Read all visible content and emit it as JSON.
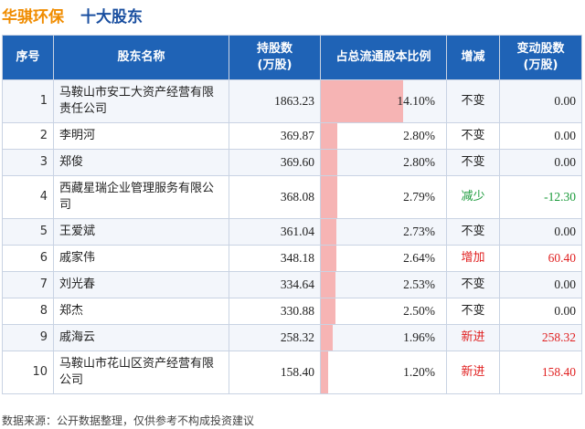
{
  "header": {
    "company": "华骐环保",
    "topic": "十大股东"
  },
  "columns": {
    "rank": "序号",
    "name": "股东名称",
    "shares": "持股数\n(万股)",
    "pct": "占总流通股本比例",
    "change": "增减",
    "delta": "变动股数\n(万股)"
  },
  "rows": [
    {
      "rank": "1",
      "name": "马鞍山市安工大资产经营有限责任公司",
      "shares": "1863.23",
      "pct": "14.10%",
      "pct_value": 14.1,
      "change": "不变",
      "change_type": "same",
      "delta": "0.00"
    },
    {
      "rank": "2",
      "name": "李明河",
      "shares": "369.87",
      "pct": "2.80%",
      "pct_value": 2.8,
      "change": "不变",
      "change_type": "same",
      "delta": "0.00"
    },
    {
      "rank": "3",
      "name": "郑俊",
      "shares": "369.60",
      "pct": "2.80%",
      "pct_value": 2.8,
      "change": "不变",
      "change_type": "same",
      "delta": "0.00"
    },
    {
      "rank": "4",
      "name": "西藏星瑞企业管理服务有限公司",
      "shares": "368.08",
      "pct": "2.79%",
      "pct_value": 2.79,
      "change": "减少",
      "change_type": "down",
      "delta": "-12.30"
    },
    {
      "rank": "5",
      "name": "王爱斌",
      "shares": "361.04",
      "pct": "2.73%",
      "pct_value": 2.73,
      "change": "不变",
      "change_type": "same",
      "delta": "0.00"
    },
    {
      "rank": "6",
      "name": "戚家伟",
      "shares": "348.18",
      "pct": "2.64%",
      "pct_value": 2.64,
      "change": "增加",
      "change_type": "up",
      "delta": "60.40"
    },
    {
      "rank": "7",
      "name": "刘光春",
      "shares": "334.64",
      "pct": "2.53%",
      "pct_value": 2.53,
      "change": "不变",
      "change_type": "same",
      "delta": "0.00"
    },
    {
      "rank": "8",
      "name": "郑杰",
      "shares": "330.88",
      "pct": "2.50%",
      "pct_value": 2.5,
      "change": "不变",
      "change_type": "same",
      "delta": "0.00"
    },
    {
      "rank": "9",
      "name": "戚海云",
      "shares": "258.32",
      "pct": "1.96%",
      "pct_value": 1.96,
      "change": "新进",
      "change_type": "up",
      "delta": "258.32"
    },
    {
      "rank": "10",
      "name": "马鞍山市花山区资产经营有限公司",
      "shares": "158.40",
      "pct": "1.20%",
      "pct_value": 1.2,
      "change": "新进",
      "change_type": "up",
      "delta": "158.40"
    }
  ],
  "footer": "数据来源：公开数据整理，仅供参考不构成投资建议",
  "colors": {
    "company": "#f08c00",
    "topic": "#1a4fa0",
    "header_bg": "#1f63b6",
    "bar": "#f6b4b4",
    "up": "#e02020",
    "down": "#1a9a3a"
  }
}
